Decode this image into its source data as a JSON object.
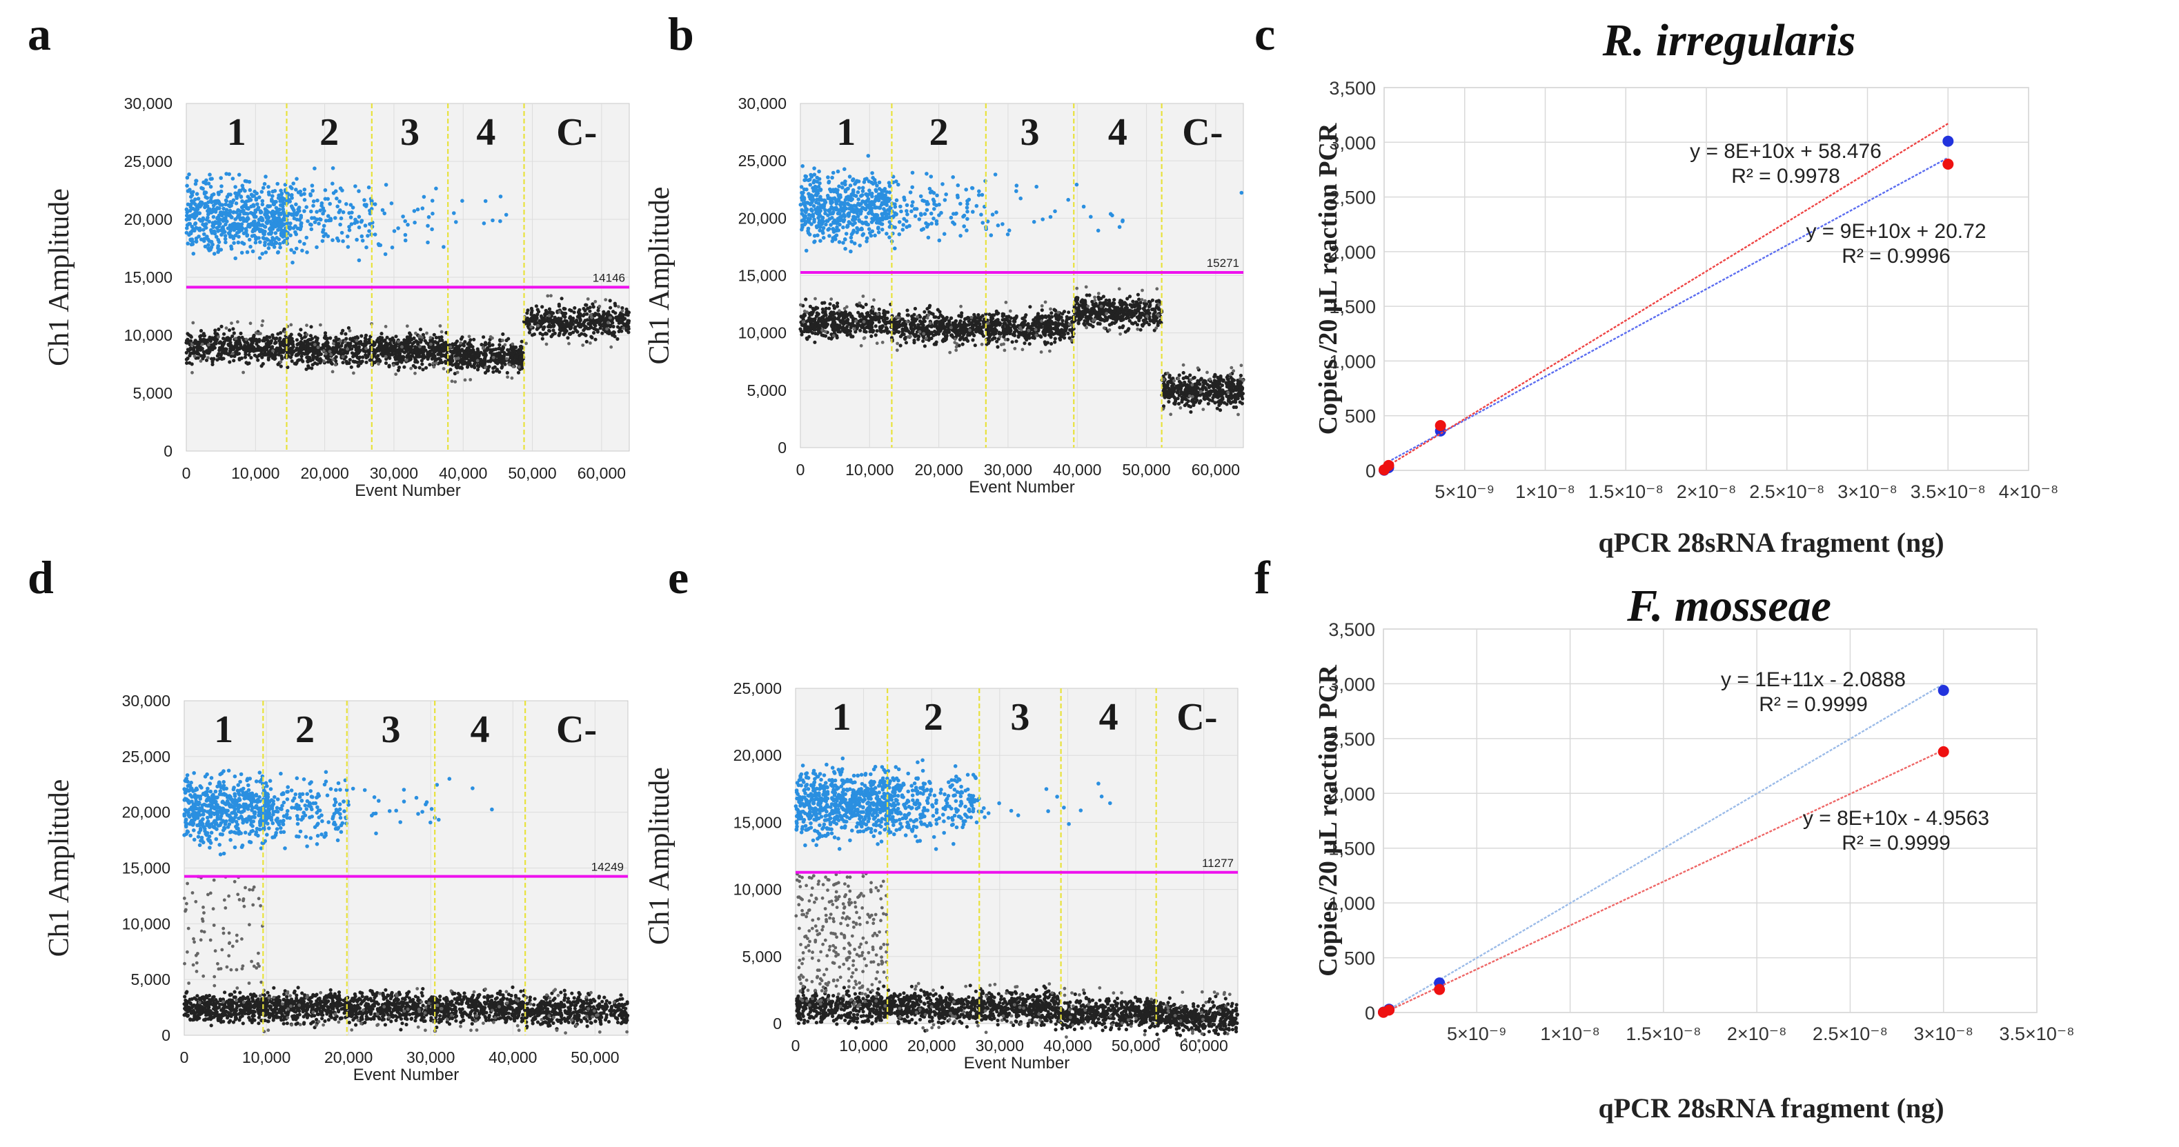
{
  "chart_data": [
    {
      "id": "a",
      "type": "scatter",
      "panel_label": "a",
      "xlabel": "Event Number",
      "ylabel": "Ch1 Amplitude",
      "xlim": [
        0,
        64000
      ],
      "ylim": [
        0,
        30000
      ],
      "xticks": [
        0,
        10000,
        20000,
        30000,
        40000,
        50000,
        60000
      ],
      "xtick_labels": [
        "0",
        "10,000",
        "20,000",
        "30,000",
        "40,000",
        "50,000",
        "60,000"
      ],
      "yticks": [
        0,
        5000,
        10000,
        15000,
        20000,
        25000,
        30000
      ],
      "ytick_labels": [
        "0",
        "5,000",
        "10,000",
        "15,000",
        "20,000",
        "25,000",
        "30,000"
      ],
      "threshold": 14146,
      "threshold_label": "14146",
      "lanes": [
        {
          "label": "1",
          "x0": 0,
          "x1": 14500,
          "positive_count": 900,
          "negative_level": 9000
        },
        {
          "label": "2",
          "x0": 14500,
          "x1": 26800,
          "positive_count": 190,
          "negative_level": 8800
        },
        {
          "label": "3",
          "x0": 26800,
          "x1": 37800,
          "positive_count": 35,
          "negative_level": 8700
        },
        {
          "label": "4",
          "x0": 37800,
          "x1": 48800,
          "positive_count": 9,
          "negative_level": 8200
        },
        {
          "label": "C-",
          "x0": 48800,
          "x1": 64000,
          "positive_count": 0,
          "negative_level": 11200
        }
      ]
    },
    {
      "id": "b",
      "type": "scatter",
      "panel_label": "b",
      "xlabel": "Event Number",
      "ylabel": "Ch1 Amplitude",
      "xlim": [
        0,
        64000
      ],
      "ylim": [
        0,
        30000
      ],
      "xticks": [
        0,
        10000,
        20000,
        30000,
        40000,
        50000,
        60000
      ],
      "xtick_labels": [
        "0",
        "10,000",
        "20,000",
        "30,000",
        "40,000",
        "50,000",
        "60,000"
      ],
      "yticks": [
        0,
        5000,
        10000,
        15000,
        20000,
        25000,
        30000
      ],
      "ytick_labels": [
        "0",
        "5,000",
        "10,000",
        "15,000",
        "20,000",
        "25,000",
        "30,000"
      ],
      "threshold": 15271,
      "threshold_label": "15271",
      "lanes": [
        {
          "label": "1",
          "x0": 0,
          "x1": 13200,
          "positive_count": 750,
          "negative_level": 11000
        },
        {
          "label": "2",
          "x0": 13200,
          "x1": 26800,
          "positive_count": 120,
          "negative_level": 10500
        },
        {
          "label": "3",
          "x0": 26800,
          "x1": 39500,
          "positive_count": 20,
          "negative_level": 10500
        },
        {
          "label": "4",
          "x0": 39500,
          "x1": 52200,
          "positive_count": 9,
          "negative_level": 11800
        },
        {
          "label": "C-",
          "x0": 52200,
          "x1": 64000,
          "positive_count": 1,
          "negative_level": 5000
        }
      ]
    },
    {
      "id": "c",
      "type": "scatter",
      "panel_label": "c",
      "title": "R. irregularis",
      "xlabel": "qPCR 28sRNA fragment (ng)",
      "ylabel": "Copies /20 µL reaction PCR",
      "xlim": [
        0,
        4e-08
      ],
      "ylim": [
        0,
        3500
      ],
      "xticks": [
        5e-09,
        1e-08,
        1.5e-08,
        2e-08,
        2.5e-08,
        3e-08,
        3.5e-08,
        4e-08
      ],
      "xtick_labels": [
        "5×10⁻⁹",
        "1×10⁻⁸",
        "1.5×10⁻⁸",
        "2×10⁻⁸",
        "2.5×10⁻⁸",
        "3×10⁻⁸",
        "3.5×10⁻⁸",
        "4×10⁻⁸"
      ],
      "yticks": [
        0,
        500,
        1000,
        1500,
        2000,
        2500,
        3000,
        3500
      ],
      "ytick_labels": [
        "0",
        "500",
        "1,000",
        "1,500",
        "2,000",
        "2,500",
        "3,000",
        "3,500"
      ],
      "series": [
        {
          "name": "blue",
          "color": "#2233dd",
          "line_color": "#5a6cf0",
          "x": [
            0,
            2.8e-10,
            3.5e-09,
            3.5e-08
          ],
          "y": [
            2,
            25,
            360,
            3010
          ],
          "fit": {
            "slope": 80000000000.0,
            "intercept": 58.476
          },
          "equation": "y = 8E+10x + 58.476",
          "r2": "R² = 0.9978"
        },
        {
          "name": "red",
          "color": "#ee1111",
          "line_color": "#ee4444",
          "x": [
            0,
            2.8e-10,
            3.5e-09,
            3.5e-08
          ],
          "y": [
            5,
            45,
            410,
            2800
          ],
          "fit": {
            "slope": 90000000000.0,
            "intercept": 20.72
          },
          "equation": "y = 9E+10x + 20.72",
          "r2": "R² = 0.9996"
        }
      ]
    },
    {
      "id": "d",
      "type": "scatter",
      "panel_label": "d",
      "xlabel": "Event Number",
      "ylabel": "Ch1 Amplitude",
      "xlim": [
        0,
        54000
      ],
      "ylim": [
        0,
        30000
      ],
      "xticks": [
        0,
        10000,
        20000,
        30000,
        40000,
        50000
      ],
      "xtick_labels": [
        "0",
        "10,000",
        "20,000",
        "30,000",
        "40,000",
        "50,000"
      ],
      "yticks": [
        0,
        5000,
        10000,
        15000,
        20000,
        25000,
        30000
      ],
      "ytick_labels": [
        "0",
        "5,000",
        "10,000",
        "15,000",
        "20,000",
        "25,000",
        "30,000"
      ],
      "threshold": 14249,
      "threshold_label": "14249",
      "lanes": [
        {
          "label": "1",
          "x0": 0,
          "x1": 9600,
          "positive_count": 700,
          "negative_level": 2500
        },
        {
          "label": "2",
          "x0": 9600,
          "x1": 19800,
          "positive_count": 230,
          "negative_level": 2500
        },
        {
          "label": "3",
          "x0": 19800,
          "x1": 30500,
          "positive_count": 22,
          "negative_level": 2500
        },
        {
          "label": "4",
          "x0": 30500,
          "x1": 41500,
          "positive_count": 6,
          "negative_level": 2500
        },
        {
          "label": "C-",
          "x0": 41500,
          "x1": 54000,
          "positive_count": 0,
          "negative_level": 2200
        }
      ]
    },
    {
      "id": "e",
      "type": "scatter",
      "panel_label": "e",
      "xlabel": "Event Number",
      "ylabel": "Ch1 Amplitude",
      "xlim": [
        0,
        65000
      ],
      "ylim": [
        0,
        25000
      ],
      "xticks": [
        0,
        10000,
        20000,
        30000,
        40000,
        50000,
        60000
      ],
      "xtick_labels": [
        "0",
        "10,000",
        "20,000",
        "30,000",
        "40,000",
        "50,000",
        "60,000"
      ],
      "yticks": [
        0,
        5000,
        10000,
        15000,
        20000,
        25000
      ],
      "ytick_labels": [
        "0",
        "5,000",
        "10,000",
        "15,000",
        "20,000",
        "25,000"
      ],
      "threshold": 11277,
      "threshold_label": "11277",
      "lanes": [
        {
          "label": "1",
          "x0": 0,
          "x1": 13500,
          "positive_count": 900,
          "negative_level": 1200
        },
        {
          "label": "2",
          "x0": 13500,
          "x1": 27000,
          "positive_count": 300,
          "negative_level": 1200
        },
        {
          "label": "3",
          "x0": 27000,
          "x1": 39000,
          "positive_count": 10,
          "negative_level": 1200
        },
        {
          "label": "4",
          "x0": 39000,
          "x1": 53000,
          "positive_count": 6,
          "negative_level": 800
        },
        {
          "label": "C-",
          "x0": 53000,
          "x1": 65000,
          "positive_count": 0,
          "negative_level": 500
        }
      ]
    },
    {
      "id": "f",
      "type": "scatter",
      "panel_label": "f",
      "title": "F. mosseae",
      "xlabel": "qPCR 28sRNA fragment (ng)",
      "ylabel": "Copies /20 µL reaction PCR",
      "xlim": [
        0,
        3.5e-08
      ],
      "ylim": [
        0,
        3500
      ],
      "xticks": [
        5e-09,
        1e-08,
        1.5e-08,
        2e-08,
        2.5e-08,
        3e-08,
        3.5e-08
      ],
      "xtick_labels": [
        "5×10⁻⁹",
        "1×10⁻⁸",
        "1.5×10⁻⁸",
        "2×10⁻⁸",
        "2.5×10⁻⁸",
        "3×10⁻⁸",
        "3.5×10⁻⁸"
      ],
      "yticks": [
        0,
        500,
        1000,
        1500,
        2000,
        2500,
        3000,
        3500
      ],
      "ytick_labels": [
        "0",
        "500",
        "1,000",
        "1,500",
        "2,000",
        "2,500",
        "3,000",
        "3,500"
      ],
      "series": [
        {
          "name": "blue",
          "color": "#2233dd",
          "line_color": "#9bbbe8",
          "x": [
            0,
            3e-10,
            3e-09,
            3e-08
          ],
          "y": [
            3,
            30,
            270,
            2940
          ],
          "fit": {
            "slope": 100000000000.0,
            "intercept": -2.0888
          },
          "equation": "y = 1E+11x - 2.0888",
          "r2": "R² = 0.9999"
        },
        {
          "name": "red",
          "color": "#ee1111",
          "line_color": "#ee6666",
          "x": [
            0,
            3e-10,
            3e-09,
            3e-08
          ],
          "y": [
            2,
            22,
            210,
            2380
          ],
          "fit": {
            "slope": 80000000000.0,
            "intercept": -4.9563
          },
          "equation": "y = 8E+10x - 4.9563",
          "r2": "R² = 0.9999"
        }
      ]
    }
  ]
}
